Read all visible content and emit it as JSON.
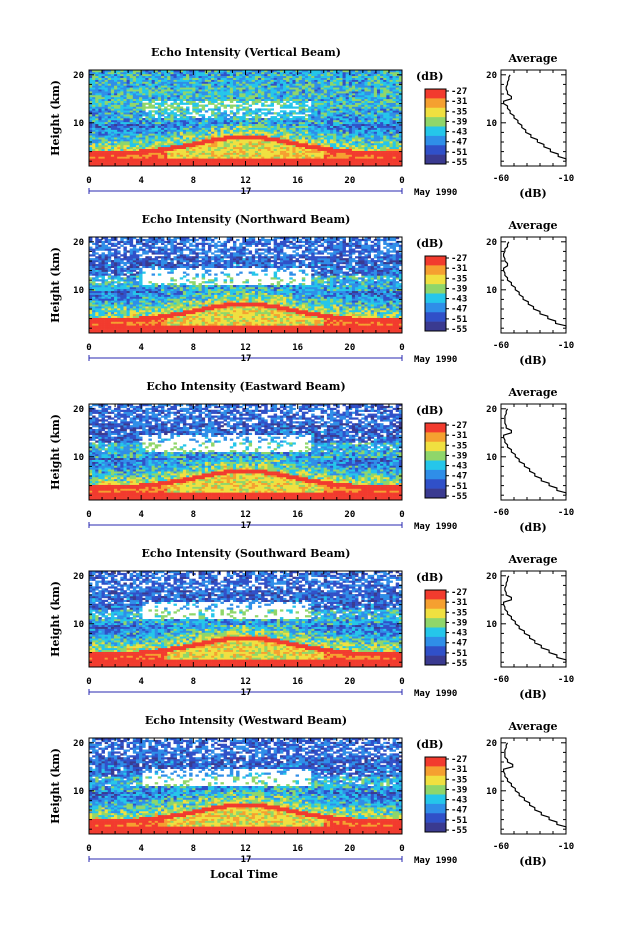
{
  "figure": {
    "xlabel": "Local Time",
    "date_label": "May 1990",
    "day_label": "17"
  },
  "colorbar": {
    "title": "(dB)",
    "ticks": [
      "-27",
      "-31",
      "-35",
      "-39",
      "-43",
      "-47",
      "-51",
      "-55"
    ],
    "colors": [
      "#3a3a90",
      "#3050c8",
      "#2f8ee8",
      "#25c6ea",
      "#8fd66a",
      "#f0e040",
      "#f5a030",
      "#f23b2e"
    ]
  },
  "chart_data": [
    {
      "type": "heatmap",
      "title": "Echo Intensity (Vertical Beam)",
      "ylabel": "Height (km)",
      "xlabel": "Local Time",
      "xticks": [
        "0",
        "4",
        "8",
        "12",
        "16",
        "20",
        "0"
      ],
      "xlim": [
        0,
        24
      ],
      "ylim": [
        1,
        21
      ],
      "yticks": [
        "20",
        "10"
      ],
      "colorbar_range_db": [
        -55,
        -27
      ],
      "profile": {
        "title": "Average",
        "xlabel": "(dB)",
        "xticks": [
          "-60",
          "-10"
        ],
        "yticks": [
          "20",
          "10"
        ],
        "height_km": [
          2,
          3,
          4,
          5,
          6,
          7,
          8,
          9,
          10,
          11,
          12,
          13,
          14,
          15,
          16,
          17,
          18,
          19,
          20
        ],
        "db": [
          -10,
          -16,
          -22,
          -27,
          -32,
          -37,
          -41,
          -44,
          -47,
          -50,
          -53,
          -55,
          -58,
          -52,
          -55,
          -56,
          -55,
          -54,
          -53
        ]
      }
    },
    {
      "type": "heatmap",
      "title": "Echo Intensity (Northward Beam)",
      "ylabel": "Height (km)",
      "xlabel": "Local Time",
      "xticks": [
        "0",
        "4",
        "8",
        "12",
        "16",
        "20",
        "0"
      ],
      "xlim": [
        0,
        24
      ],
      "ylim": [
        1,
        21
      ],
      "yticks": [
        "20",
        "10"
      ],
      "colorbar_range_db": [
        -55,
        -27
      ],
      "profile": {
        "title": "Average",
        "xlabel": "(dB)",
        "xticks": [
          "-60",
          "-10"
        ],
        "yticks": [
          "20",
          "10"
        ],
        "height_km": [
          2,
          3,
          4,
          5,
          6,
          7,
          8,
          9,
          10,
          11,
          12,
          13,
          14,
          15,
          16,
          17,
          18,
          19,
          20
        ],
        "db": [
          -10,
          -18,
          -24,
          -30,
          -35,
          -39,
          -43,
          -46,
          -49,
          -52,
          -55,
          -57,
          -58,
          -55,
          -57,
          -58,
          -57,
          -55,
          -54
        ]
      }
    },
    {
      "type": "heatmap",
      "title": "Echo Intensity (Eastward Beam)",
      "ylabel": "Height (km)",
      "xlabel": "Local Time",
      "xticks": [
        "0",
        "4",
        "8",
        "12",
        "16",
        "20",
        "0"
      ],
      "xlim": [
        0,
        24
      ],
      "ylim": [
        1,
        21
      ],
      "yticks": [
        "20",
        "10"
      ],
      "colorbar_range_db": [
        -55,
        -27
      ],
      "profile": {
        "title": "Average",
        "xlabel": "(dB)",
        "xticks": [
          "-60",
          "-10"
        ],
        "yticks": [
          "20",
          "10"
        ],
        "height_km": [
          2,
          3,
          4,
          5,
          6,
          7,
          8,
          9,
          10,
          11,
          12,
          13,
          14,
          15,
          16,
          17,
          18,
          19,
          20
        ],
        "db": [
          -10,
          -17,
          -23,
          -29,
          -34,
          -38,
          -42,
          -46,
          -49,
          -52,
          -55,
          -57,
          -58,
          -52,
          -56,
          -57,
          -57,
          -56,
          -55
        ]
      }
    },
    {
      "type": "heatmap",
      "title": "Echo Intensity (Southward Beam)",
      "ylabel": "Height (km)",
      "xlabel": "Local Time",
      "xticks": [
        "0",
        "4",
        "8",
        "12",
        "16",
        "20",
        "0"
      ],
      "xlim": [
        0,
        24
      ],
      "ylim": [
        1,
        21
      ],
      "yticks": [
        "20",
        "10"
      ],
      "colorbar_range_db": [
        -55,
        -27
      ],
      "profile": {
        "title": "Average",
        "xlabel": "(dB)",
        "xticks": [
          "-60",
          "-10"
        ],
        "yticks": [
          "20",
          "10"
        ],
        "height_km": [
          2,
          3,
          4,
          5,
          6,
          7,
          8,
          9,
          10,
          11,
          12,
          13,
          14,
          15,
          16,
          17,
          18,
          19,
          20
        ],
        "db": [
          -10,
          -17,
          -23,
          -29,
          -34,
          -38,
          -42,
          -46,
          -49,
          -52,
          -55,
          -57,
          -58,
          -52,
          -56,
          -57,
          -56,
          -55,
          -54
        ]
      }
    },
    {
      "type": "heatmap",
      "title": "Echo Intensity (Westward Beam)",
      "ylabel": "Height (km)",
      "xlabel": "Local Time",
      "xticks": [
        "0",
        "4",
        "8",
        "12",
        "16",
        "20",
        "0"
      ],
      "xlim": [
        0,
        24
      ],
      "ylim": [
        1,
        21
      ],
      "yticks": [
        "20",
        "10"
      ],
      "colorbar_range_db": [
        -55,
        -27
      ],
      "profile": {
        "title": "Average",
        "xlabel": "(dB)",
        "xticks": [
          "-60",
          "-10"
        ],
        "yticks": [
          "20",
          "10"
        ],
        "height_km": [
          2,
          3,
          4,
          5,
          6,
          7,
          8,
          9,
          10,
          11,
          12,
          13,
          14,
          15,
          16,
          17,
          18,
          19,
          20
        ],
        "db": [
          -10,
          -17,
          -23,
          -29,
          -34,
          -38,
          -42,
          -46,
          -49,
          -52,
          -55,
          -57,
          -58,
          -51,
          -55,
          -57,
          -57,
          -56,
          -55
        ]
      }
    }
  ]
}
